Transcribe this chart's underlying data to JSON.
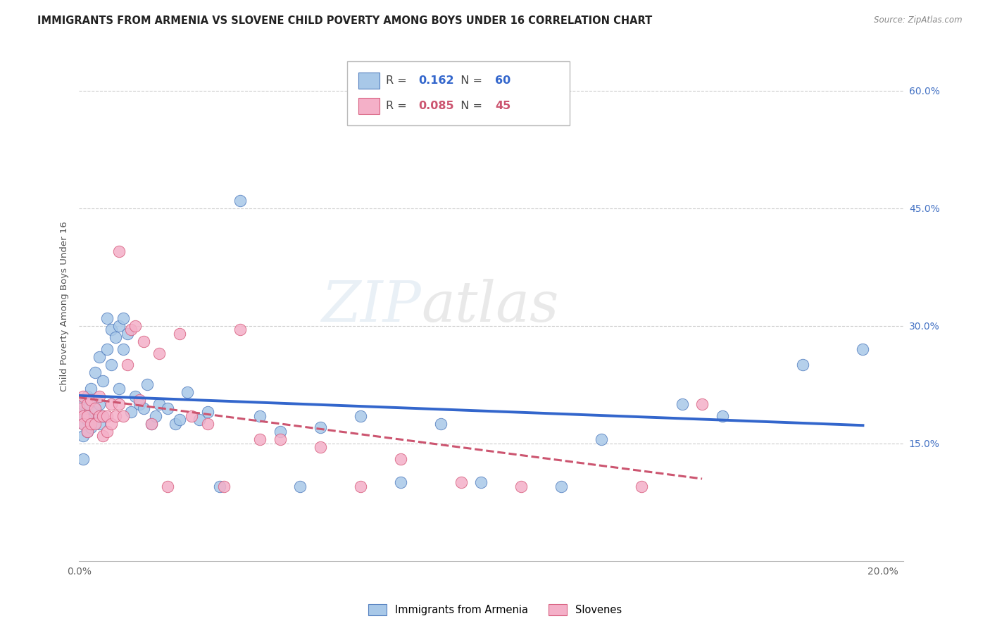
{
  "title": "IMMIGRANTS FROM ARMENIA VS SLOVENE CHILD POVERTY AMONG BOYS UNDER 16 CORRELATION CHART",
  "source": "Source: ZipAtlas.com",
  "ylabel": "Child Poverty Among Boys Under 16",
  "xlim": [
    0.0,
    0.205
  ],
  "ylim": [
    0.0,
    0.65
  ],
  "blue_R": "0.162",
  "blue_N": "60",
  "pink_R": "0.085",
  "pink_N": "45",
  "blue_dot_color": "#a8c8e8",
  "blue_edge_color": "#5580c0",
  "pink_dot_color": "#f4b0c8",
  "pink_edge_color": "#d86080",
  "blue_line_color": "#3366cc",
  "pink_line_color": "#cc5570",
  "watermark": "ZIPatlas",
  "grid_color": "#cccccc",
  "right_tick_color": "#4472c4",
  "blue_scatter_x": [
    0.0,
    0.001,
    0.001,
    0.001,
    0.001,
    0.001,
    0.002,
    0.002,
    0.002,
    0.002,
    0.003,
    0.003,
    0.003,
    0.004,
    0.004,
    0.005,
    0.005,
    0.005,
    0.006,
    0.006,
    0.007,
    0.007,
    0.008,
    0.008,
    0.009,
    0.01,
    0.01,
    0.011,
    0.011,
    0.012,
    0.013,
    0.014,
    0.015,
    0.016,
    0.017,
    0.018,
    0.019,
    0.02,
    0.022,
    0.024,
    0.025,
    0.027,
    0.03,
    0.032,
    0.035,
    0.04,
    0.045,
    0.05,
    0.055,
    0.06,
    0.07,
    0.08,
    0.09,
    0.1,
    0.12,
    0.13,
    0.15,
    0.16,
    0.18,
    0.195
  ],
  "blue_scatter_y": [
    0.19,
    0.2,
    0.185,
    0.175,
    0.16,
    0.13,
    0.21,
    0.195,
    0.18,
    0.165,
    0.22,
    0.205,
    0.17,
    0.24,
    0.19,
    0.26,
    0.2,
    0.175,
    0.23,
    0.185,
    0.31,
    0.27,
    0.295,
    0.25,
    0.285,
    0.3,
    0.22,
    0.31,
    0.27,
    0.29,
    0.19,
    0.21,
    0.2,
    0.195,
    0.225,
    0.175,
    0.185,
    0.2,
    0.195,
    0.175,
    0.18,
    0.215,
    0.18,
    0.19,
    0.095,
    0.46,
    0.185,
    0.165,
    0.095,
    0.17,
    0.185,
    0.1,
    0.175,
    0.1,
    0.095,
    0.155,
    0.2,
    0.185,
    0.25,
    0.27
  ],
  "pink_scatter_x": [
    0.0,
    0.001,
    0.001,
    0.001,
    0.002,
    0.002,
    0.002,
    0.003,
    0.003,
    0.004,
    0.004,
    0.005,
    0.005,
    0.006,
    0.006,
    0.007,
    0.007,
    0.008,
    0.008,
    0.009,
    0.01,
    0.01,
    0.011,
    0.012,
    0.013,
    0.014,
    0.015,
    0.016,
    0.018,
    0.02,
    0.022,
    0.025,
    0.028,
    0.032,
    0.036,
    0.04,
    0.045,
    0.05,
    0.06,
    0.07,
    0.08,
    0.095,
    0.11,
    0.14,
    0.155
  ],
  "pink_scatter_y": [
    0.195,
    0.21,
    0.185,
    0.175,
    0.2,
    0.185,
    0.165,
    0.205,
    0.175,
    0.195,
    0.175,
    0.21,
    0.185,
    0.185,
    0.16,
    0.185,
    0.165,
    0.2,
    0.175,
    0.185,
    0.395,
    0.2,
    0.185,
    0.25,
    0.295,
    0.3,
    0.205,
    0.28,
    0.175,
    0.265,
    0.095,
    0.29,
    0.185,
    0.175,
    0.095,
    0.295,
    0.155,
    0.155,
    0.145,
    0.095,
    0.13,
    0.1,
    0.095,
    0.095,
    0.2
  ]
}
